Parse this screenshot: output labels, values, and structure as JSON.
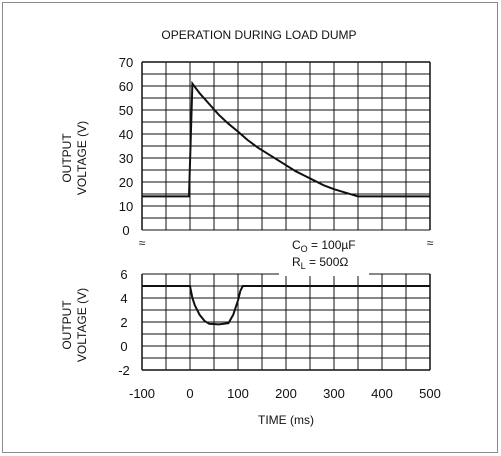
{
  "chart_data": {
    "type": "line",
    "title": "OPERATION DURING LOAD DUMP",
    "xlabel": "TIME (ms)",
    "xlim": [
      -100,
      500
    ],
    "x_ticks": [
      "-100",
      "0",
      "100",
      "200",
      "300",
      "400",
      "500"
    ],
    "axis_break_symbol": "≈",
    "panels": [
      {
        "name": "input",
        "ylabel_lines": [
          "OUTPUT",
          "VOLTAGE (V)"
        ],
        "ylim": [
          0,
          70
        ],
        "y_ticks": [
          "0",
          "10",
          "20",
          "30",
          "40",
          "50",
          "60",
          "70"
        ],
        "x": [
          -100,
          -2,
          -2,
          5,
          20,
          40,
          60,
          80,
          100,
          120,
          140,
          160,
          180,
          200,
          220,
          240,
          260,
          280,
          300,
          350,
          400,
          500
        ],
        "y": [
          14,
          14,
          14,
          61,
          57,
          52.5,
          48,
          44.3,
          41,
          37.5,
          34.5,
          32,
          29.5,
          27,
          24.5,
          22.5,
          20.5,
          18.5,
          17,
          14,
          14,
          14
        ]
      },
      {
        "name": "output",
        "ylabel_lines": [
          "OUTPUT",
          "VOLTAGE (V)"
        ],
        "ylim": [
          -2,
          6
        ],
        "y_ticks": [
          "-2",
          "0",
          "2",
          "4",
          "6"
        ],
        "x": [
          -100,
          0,
          5,
          10,
          20,
          30,
          40,
          60,
          80,
          90,
          100,
          105,
          110,
          500
        ],
        "y": [
          5,
          5,
          4,
          3.4,
          2.6,
          2.1,
          1.85,
          1.8,
          1.9,
          2.6,
          3.8,
          4.6,
          5,
          5
        ]
      }
    ],
    "annotation": {
      "c_label": "C",
      "c_sub": "O",
      "c_value": " = 100µF",
      "r_label": "R",
      "r_sub": "L",
      "r_value": " = 500Ω"
    }
  }
}
